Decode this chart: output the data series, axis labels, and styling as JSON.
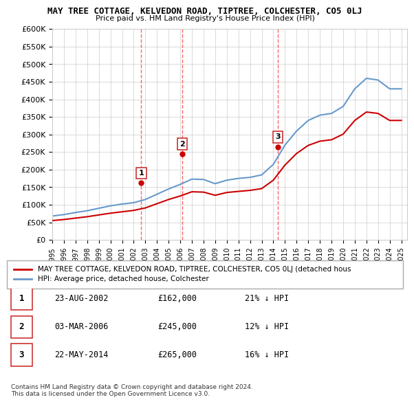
{
  "title": "MAY TREE COTTAGE, KELVEDON ROAD, TIPTREE, COLCHESTER, CO5 0LJ",
  "subtitle": "Price paid vs. HM Land Registry's House Price Index (HPI)",
  "xlabel": "",
  "ylabel": "",
  "ylim": [
    0,
    600000
  ],
  "yticks": [
    0,
    50000,
    100000,
    150000,
    200000,
    250000,
    300000,
    350000,
    400000,
    450000,
    500000,
    550000,
    600000
  ],
  "ytick_labels": [
    "£0",
    "£50K",
    "£100K",
    "£150K",
    "£200K",
    "£250K",
    "£300K",
    "£350K",
    "£400K",
    "£450K",
    "£500K",
    "£550K",
    "£600K"
  ],
  "hpi_years": [
    1995,
    1996,
    1997,
    1998,
    1999,
    2000,
    2001,
    2002,
    2003,
    2004,
    2005,
    2006,
    2007,
    2008,
    2009,
    2010,
    2011,
    2012,
    2013,
    2014,
    2015,
    2016,
    2017,
    2018,
    2019,
    2020,
    2021,
    2022,
    2023,
    2024,
    2025
  ],
  "hpi_values": [
    68000,
    72000,
    78000,
    83000,
    90000,
    97000,
    102000,
    106000,
    115000,
    130000,
    145000,
    158000,
    173000,
    172000,
    160000,
    170000,
    175000,
    178000,
    185000,
    215000,
    270000,
    310000,
    340000,
    355000,
    360000,
    380000,
    430000,
    460000,
    455000,
    430000,
    430000
  ],
  "house_years": [
    1995,
    1996,
    1997,
    1998,
    1999,
    2000,
    2001,
    2002,
    2003,
    2004,
    2005,
    2006,
    2007,
    2008,
    2009,
    2010,
    2011,
    2012,
    2013,
    2014,
    2015,
    2016,
    2017,
    2018,
    2019,
    2020,
    2021,
    2022,
    2023,
    2024,
    2025
  ],
  "house_values": [
    55000,
    58000,
    62000,
    66000,
    71000,
    76000,
    80000,
    84000,
    91000,
    103000,
    115000,
    125000,
    137000,
    136000,
    127000,
    135000,
    138000,
    141000,
    146000,
    170000,
    213000,
    246000,
    269000,
    281000,
    285000,
    301000,
    340000,
    364000,
    360000,
    340000,
    340000
  ],
  "sale_points": [
    {
      "year": 2002.65,
      "price": 162000,
      "label": "1"
    },
    {
      "year": 2006.17,
      "price": 245000,
      "label": "2"
    },
    {
      "year": 2014.38,
      "price": 265000,
      "label": "3"
    }
  ],
  "vline_years": [
    2002.65,
    2006.17,
    2014.38
  ],
  "red_color": "#cc0000",
  "blue_color": "#6699cc",
  "vline_color": "#ff6666",
  "legend_label_red": "MAY TREE COTTAGE, KELVEDON ROAD, TIPTREE, COLCHESTER, CO5 0LJ (detached hous",
  "legend_label_blue": "HPI: Average price, detached house, Colchester",
  "table_data": [
    {
      "num": "1",
      "date": "23-AUG-2002",
      "price": "£162,000",
      "hpi": "21% ↓ HPI"
    },
    {
      "num": "2",
      "date": "03-MAR-2006",
      "price": "£245,000",
      "hpi": "12% ↓ HPI"
    },
    {
      "num": "3",
      "date": "22-MAY-2014",
      "price": "£265,000",
      "hpi": "16% ↓ HPI"
    }
  ],
  "footer": "Contains HM Land Registry data © Crown copyright and database right 2024.\nThis data is licensed under the Open Government Licence v3.0.",
  "bg_color": "#ffffff",
  "grid_color": "#cccccc",
  "box_color": "#cc3333"
}
